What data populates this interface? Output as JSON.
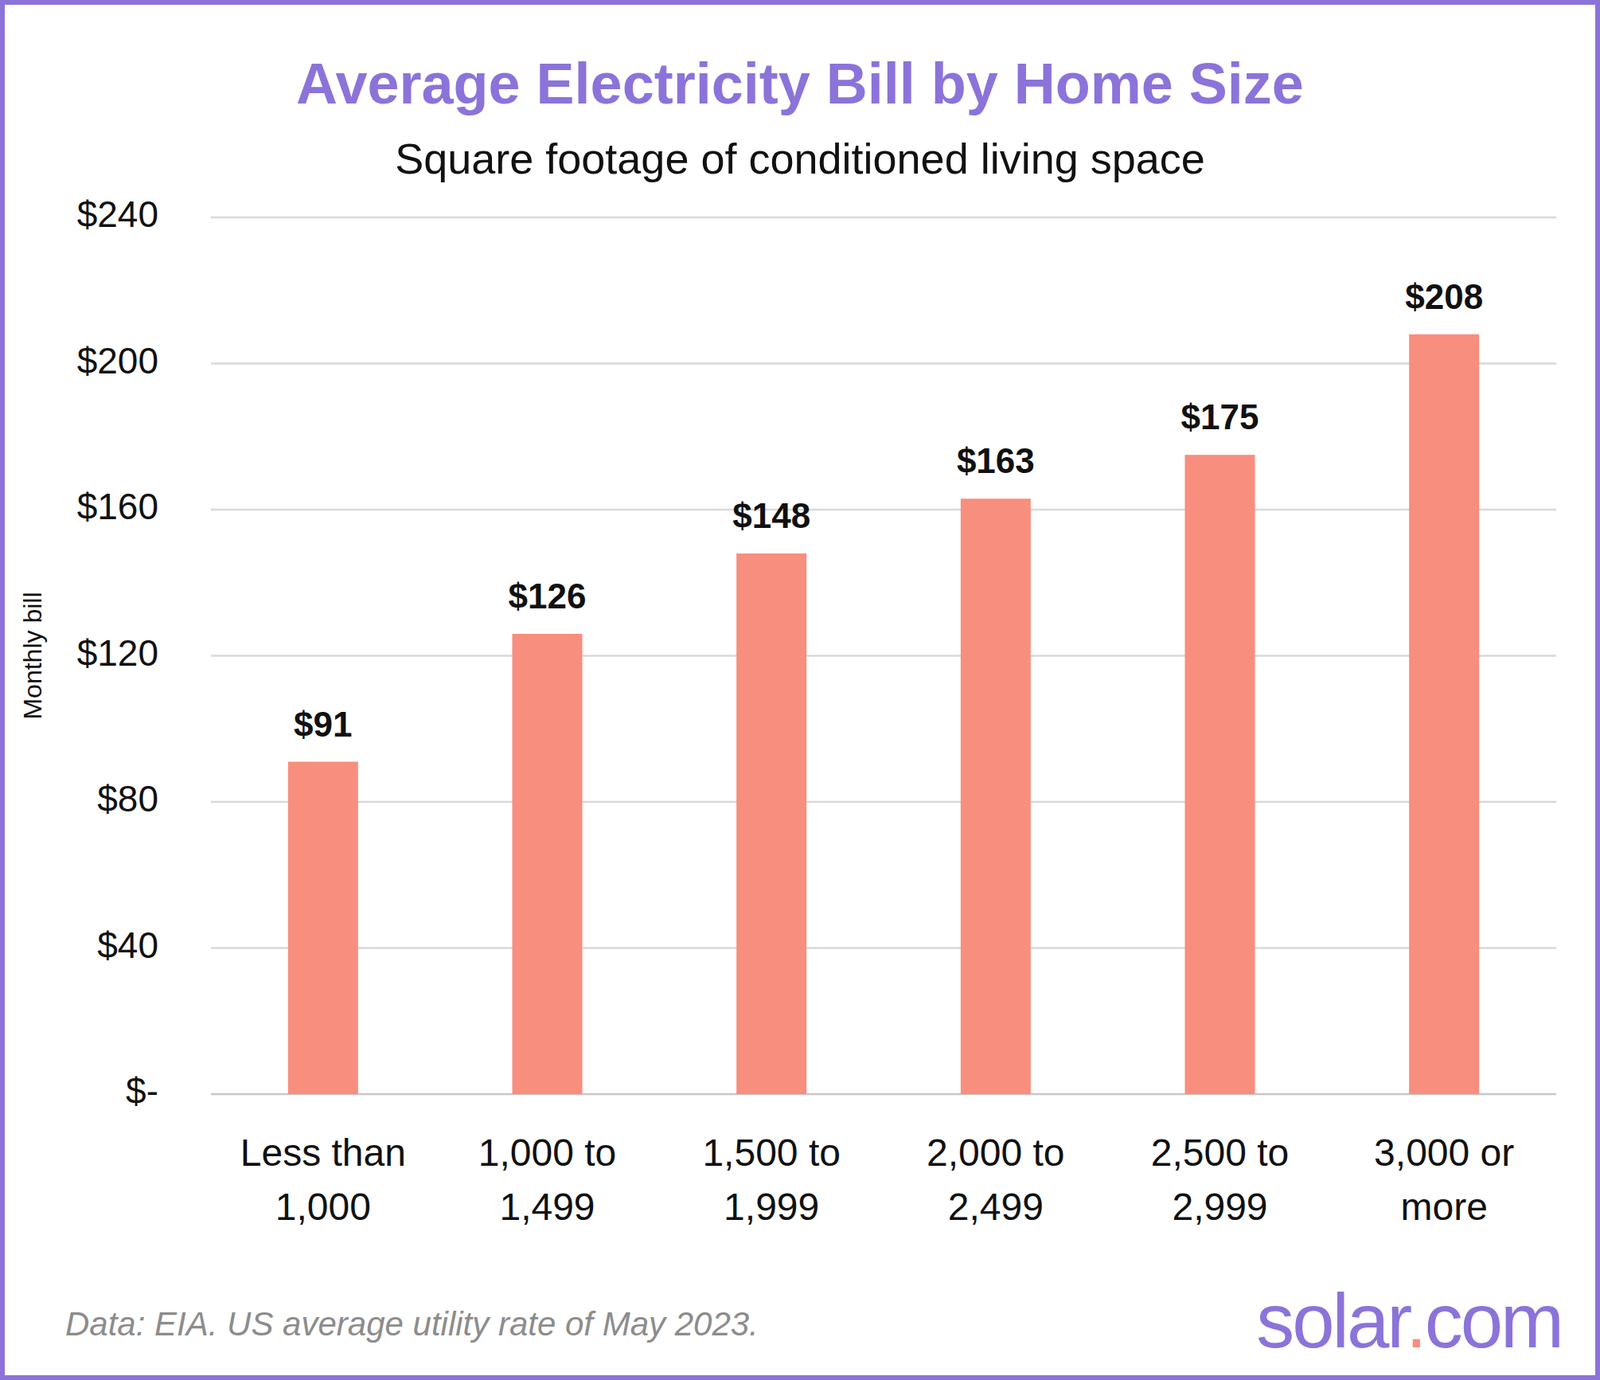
{
  "chart_data": {
    "type": "bar",
    "title": "Average Electricity Bill by Home Size",
    "subtitle": "Square footage of conditioned living space",
    "y_label": "Monthly bill",
    "categories": [
      "Less than 1,000",
      "1,000 to 1,499",
      "1,500 to 1,999",
      "2,000 to 2,499",
      "2,500 to 2,999",
      "3,000 or more"
    ],
    "values": [
      91,
      126,
      148,
      163,
      175,
      208
    ],
    "value_labels": [
      "$91",
      "$126",
      "$148",
      "$163",
      "$175",
      "$208"
    ],
    "color": "#f88e7e",
    "ylim": [
      0,
      240
    ],
    "yticks": [
      {
        "value": 0,
        "label": "$-"
      },
      {
        "value": 40,
        "label": "$40"
      },
      {
        "value": 80,
        "label": "$80"
      },
      {
        "value": 120,
        "label": "$120"
      },
      {
        "value": 160,
        "label": "$160"
      },
      {
        "value": 200,
        "label": "$200"
      },
      {
        "value": 240,
        "label": "$240"
      }
    ],
    "grid": true,
    "data_labels": true,
    "annotations": [
      "Data: EIA. US average utility rate of May 2023.",
      "solar.com"
    ]
  }
}
